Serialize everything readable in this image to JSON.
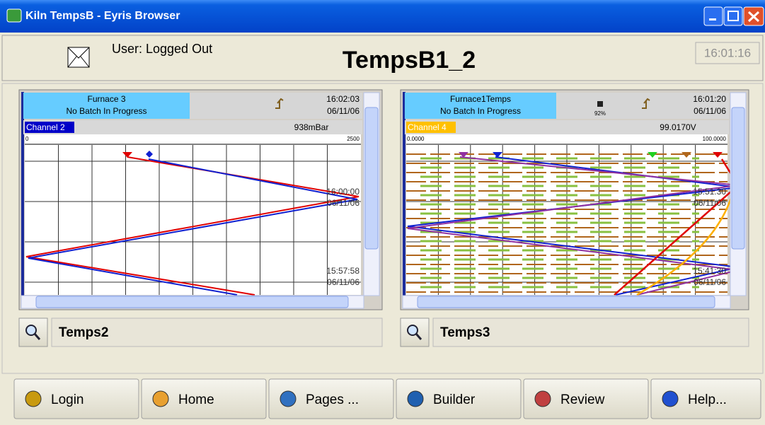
{
  "window": {
    "title": "Kiln TempsB - Eyris Browser"
  },
  "header": {
    "user": "User: Logged Out",
    "page_title": "TempsB1_2",
    "clock": "16:01:16"
  },
  "panels": [
    {
      "group": "Furnace 3",
      "batch": "No Batch In Progress",
      "time": "16:02:03",
      "date": "06/11/06",
      "channel": "Channel 2",
      "channel_color": "#0000c8",
      "reading": "938mBar",
      "scale_min": "0",
      "scale_max": "2500",
      "timestamps": [
        {
          "time": "16:00:00",
          "date": "06/11/06"
        },
        {
          "time": "15:57:58",
          "date": "06/11/06"
        }
      ],
      "name": "Temps2"
    },
    {
      "group": "Furnace1Temps",
      "batch": "No Batch In Progress",
      "disk": "92%",
      "time": "16:01:20",
      "date": "06/11/06",
      "channel": "Channel 4",
      "channel_color": "#ffc000",
      "reading": "99.0170V",
      "scale_min": "0.0000",
      "scale_max": "100.0000",
      "timestamps": [
        {
          "time": "15:51:30",
          "date": "06/11/06"
        },
        {
          "time": "15:41:30",
          "date": "06/11/06"
        }
      ],
      "name": "Temps3"
    }
  ],
  "toolbar": {
    "buttons": [
      "Login",
      "Home",
      "Pages ...",
      "Builder",
      "Review",
      "Help..."
    ]
  }
}
